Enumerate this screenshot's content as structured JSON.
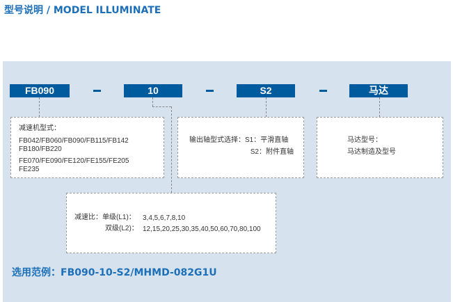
{
  "title": "型号说明 / MODEL ILLUMINATE",
  "codes": {
    "reducer": "FB090",
    "ratio": "10",
    "shaft": "S2",
    "motor": "马达"
  },
  "separator": "-",
  "reducer_box": {
    "label": "减速机型式：",
    "line1": "FB042/FB060/FB090/FB115/FB142",
    "line2": "FB180/FB220",
    "line3": "FE070/FE090/FE120/FE155/FE205",
    "line4": "FE235"
  },
  "shaft_box": {
    "line1": "输出轴型式选择：S1：平滑直轴",
    "line2": "S2：附件直轴"
  },
  "motor_box": {
    "line1": "马达型号：",
    "line2": "马达制造及型号"
  },
  "ratio_box": {
    "label": "减速比：",
    "single_label": "单级(L1)：",
    "single_values": "3,4,5,6,7,8,10",
    "double_label": "双级(L2)：",
    "double_values": "12,15,20,25,30,35,40,50,60,70,80,100"
  },
  "example": "选用范例：FB090-10-S2/MHMD-082G1U",
  "colors": {
    "accent": "#005a9e",
    "panel": "#d6e3ee",
    "title": "#1d6fb8"
  }
}
